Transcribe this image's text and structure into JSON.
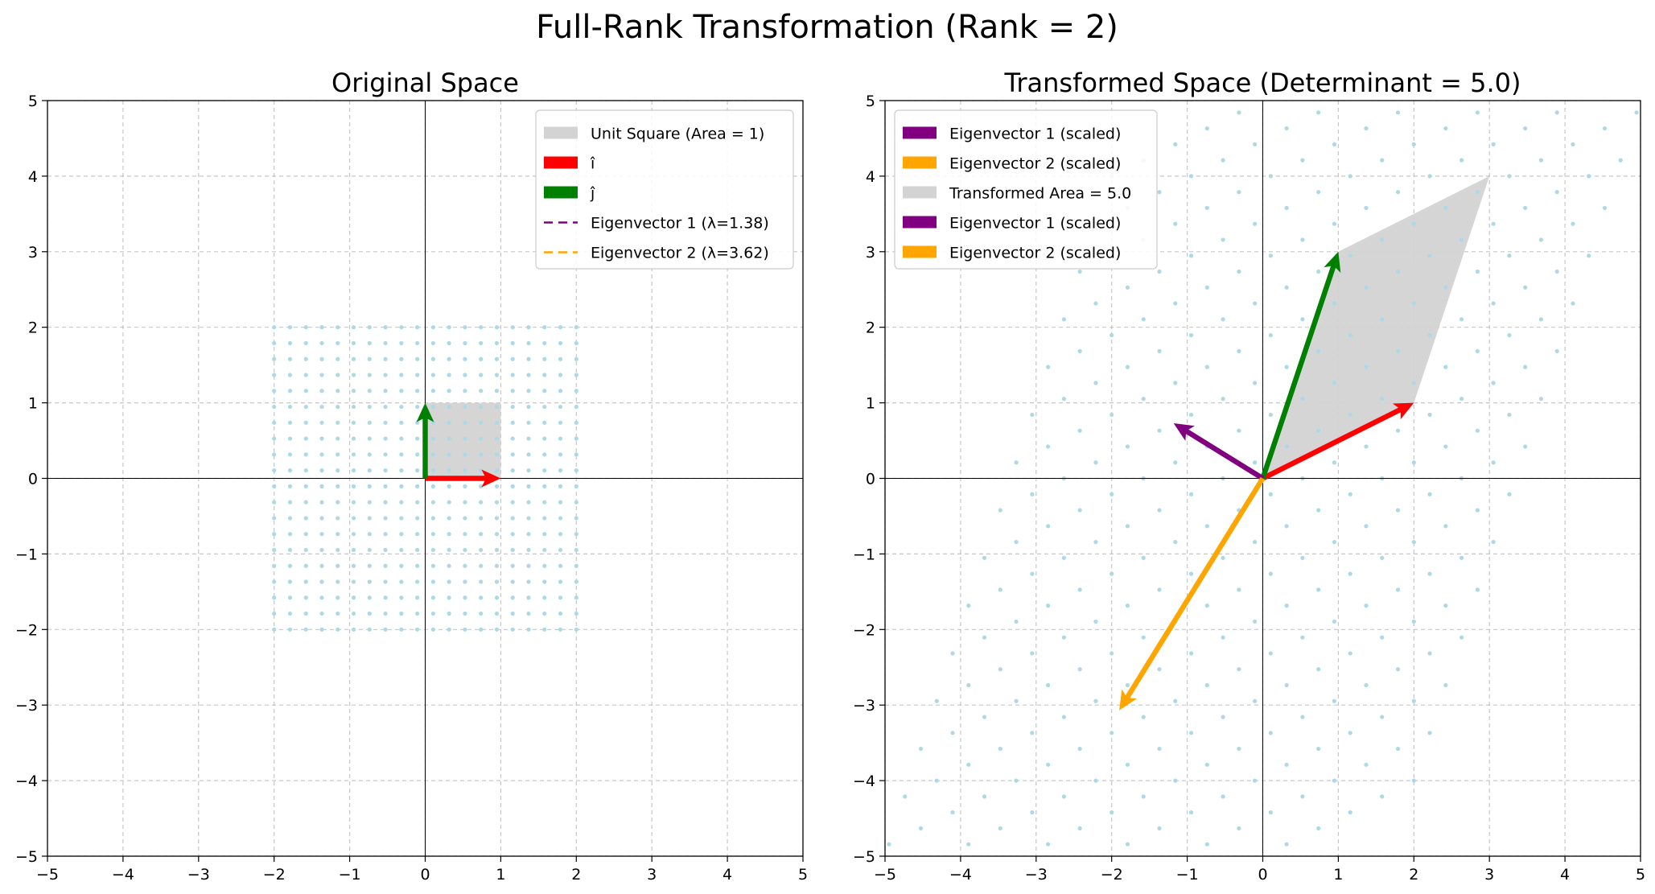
{
  "figure": {
    "suptitle": "Full-Rank Transformation (Rank = 2)"
  },
  "colors": {
    "grid_points": "#add8e6",
    "i_hat": "#ff0000",
    "j_hat": "#008000",
    "eigenvector_1": "#800080",
    "eigenvector_2": "#ffa500",
    "area_fill": "#d3d3d3",
    "gridline": "#b0b0b0"
  },
  "chart_data": [
    {
      "type": "scatter",
      "title": "Original Space",
      "xlabel": "",
      "ylabel": "",
      "xlim": [
        -5,
        5
      ],
      "ylim": [
        -5,
        5
      ],
      "xticks": [
        -5,
        -4,
        -3,
        -2,
        -1,
        0,
        1,
        2,
        3,
        4,
        5
      ],
      "yticks": [
        -5,
        -4,
        -3,
        -2,
        -1,
        0,
        1,
        2,
        3,
        4,
        5
      ],
      "grid": true,
      "legend_position": "top-right",
      "grid_points": {
        "range": [
          -2,
          2
        ],
        "count_per_axis": 20,
        "matrix": [
          [
            1,
            0
          ],
          [
            0,
            1
          ]
        ]
      },
      "polygon": {
        "name": "Unit Square (Area = 1)",
        "points": [
          [
            0,
            0
          ],
          [
            1,
            0
          ],
          [
            1,
            1
          ],
          [
            0,
            1
          ]
        ]
      },
      "arrows": [
        {
          "name": "i-hat",
          "from": [
            0,
            0
          ],
          "to": [
            1,
            0
          ],
          "color": "#ff0000"
        },
        {
          "name": "j-hat",
          "from": [
            0,
            0
          ],
          "to": [
            0,
            1
          ],
          "color": "#008000"
        }
      ],
      "legend": [
        {
          "label": "Unit Square (Area = 1)",
          "kind": "patch",
          "color": "#d3d3d3"
        },
        {
          "label": "î",
          "kind": "patch",
          "color": "#ff0000"
        },
        {
          "label": "ĵ",
          "kind": "patch",
          "color": "#008000"
        },
        {
          "label": "Eigenvector 1 (λ=1.38)",
          "kind": "dashed",
          "color": "#800080"
        },
        {
          "label": "Eigenvector 2 (λ=3.62)",
          "kind": "dashed",
          "color": "#ffa500"
        }
      ]
    },
    {
      "type": "scatter",
      "title": "Transformed Space (Determinant = 5.0)",
      "xlabel": "",
      "ylabel": "",
      "xlim": [
        -5,
        5
      ],
      "ylim": [
        -5,
        5
      ],
      "xticks": [
        -5,
        -4,
        -3,
        -2,
        -1,
        0,
        1,
        2,
        3,
        4,
        5
      ],
      "yticks": [
        -5,
        -4,
        -3,
        -2,
        -1,
        0,
        1,
        2,
        3,
        4,
        5
      ],
      "grid": true,
      "legend_position": "top-left",
      "grid_points": {
        "range": [
          -2,
          2
        ],
        "count_per_axis": 20,
        "matrix": [
          [
            2,
            1
          ],
          [
            1,
            3
          ]
        ]
      },
      "polygon": {
        "name": "Transformed Area = 5.0",
        "points": [
          [
            0,
            0
          ],
          [
            2,
            1
          ],
          [
            3,
            4
          ],
          [
            1,
            3
          ]
        ]
      },
      "arrows": [
        {
          "name": "transformed-i-hat",
          "from": [
            0,
            0
          ],
          "to": [
            2,
            1
          ],
          "color": "#ff0000"
        },
        {
          "name": "transformed-j-hat",
          "from": [
            0,
            0
          ],
          "to": [
            1,
            3
          ],
          "color": "#008000"
        },
        {
          "name": "eigenvector-1-scaled",
          "from": [
            0,
            0
          ],
          "to": [
            -1.18,
            0.73
          ],
          "color": "#800080"
        },
        {
          "name": "eigenvector-2-scaled",
          "from": [
            0,
            0
          ],
          "to": [
            -1.9,
            -3.07
          ],
          "color": "#ffa500"
        }
      ],
      "legend": [
        {
          "label": "Eigenvector 1 (scaled)",
          "kind": "patch",
          "color": "#800080"
        },
        {
          "label": "Eigenvector 2 (scaled)",
          "kind": "patch",
          "color": "#ffa500"
        },
        {
          "label": "Transformed Area = 5.0",
          "kind": "patch",
          "color": "#d3d3d3"
        },
        {
          "label": "Eigenvector 1 (scaled)",
          "kind": "patch",
          "color": "#800080"
        },
        {
          "label": "Eigenvector 2 (scaled)",
          "kind": "patch",
          "color": "#ffa500"
        }
      ]
    }
  ]
}
